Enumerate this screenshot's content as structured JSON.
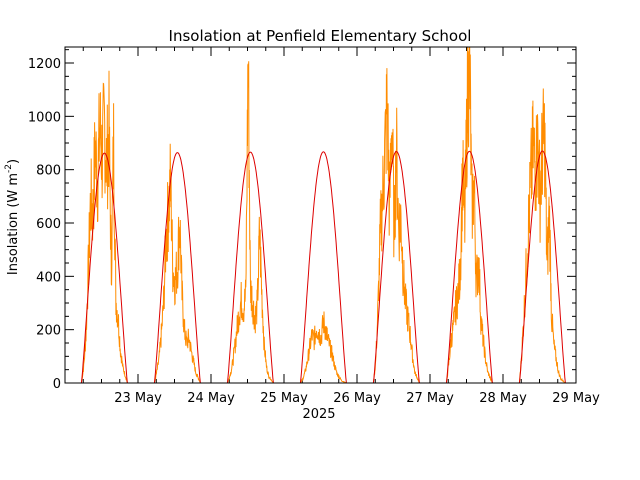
{
  "chart_data": {
    "type": "line",
    "title": "Insolation at Penfield Elementary School",
    "ylabel_main": "Insolation (W m",
    "ylabel_sup": "-2",
    "ylabel_close": ")",
    "xlabel": "2025",
    "x_range_days": [
      22.0,
      29.0
    ],
    "ylim": [
      0,
      1260
    ],
    "y_ticks": [
      0,
      200,
      400,
      600,
      800,
      1000,
      1200
    ],
    "x_ticks": [
      {
        "day": 23,
        "label": "23 May"
      },
      {
        "day": 24,
        "label": "24 May"
      },
      {
        "day": 25,
        "label": "25 May"
      },
      {
        "day": 26,
        "label": "26 May"
      },
      {
        "day": 27,
        "label": "27 May"
      },
      {
        "day": 28,
        "label": "28 May"
      },
      {
        "day": 29,
        "label": "29 May"
      }
    ],
    "grid": false,
    "series": [
      {
        "key": "clear_sky",
        "color": "#dd0000",
        "peaks": [
          862,
          864,
          866,
          867,
          868,
          869,
          870
        ]
      },
      {
        "key": "measured",
        "color": "#ff8c00",
        "days": [
          {
            "profile": [
              [
                0,
                0
              ],
              [
                0.05,
                60
              ],
              [
                0.1,
                180
              ],
              [
                0.15,
                420
              ],
              [
                0.2,
                690
              ],
              [
                0.25,
                640
              ],
              [
                0.3,
                880
              ],
              [
                0.35,
                760
              ],
              [
                0.4,
                960
              ],
              [
                0.45,
                850
              ],
              [
                0.5,
                970
              ],
              [
                0.55,
                820
              ],
              [
                0.6,
                940
              ],
              [
                0.65,
                420
              ],
              [
                0.7,
                900
              ],
              [
                0.75,
                310
              ],
              [
                0.8,
                240
              ],
              [
                0.85,
                120
              ],
              [
                0.9,
                60
              ],
              [
                1,
                0
              ]
            ]
          },
          {
            "profile": [
              [
                0,
                0
              ],
              [
                0.05,
                40
              ],
              [
                0.1,
                90
              ],
              [
                0.15,
                180
              ],
              [
                0.2,
                300
              ],
              [
                0.25,
                530
              ],
              [
                0.3,
                640
              ],
              [
                0.35,
                760
              ],
              [
                0.4,
                430
              ],
              [
                0.45,
                380
              ],
              [
                0.5,
                440
              ],
              [
                0.55,
                620
              ],
              [
                0.6,
                330
              ],
              [
                0.65,
                200
              ],
              [
                0.7,
                150
              ],
              [
                0.75,
                170
              ],
              [
                0.8,
                120
              ],
              [
                0.85,
                80
              ],
              [
                0.9,
                40
              ],
              [
                1,
                0
              ]
            ]
          },
          {
            "profile": [
              [
                0,
                0
              ],
              [
                0.05,
                25
              ],
              [
                0.1,
                60
              ],
              [
                0.15,
                120
              ],
              [
                0.2,
                190
              ],
              [
                0.25,
                260
              ],
              [
                0.3,
                310
              ],
              [
                0.35,
                280
              ],
              [
                0.4,
                330
              ],
              [
                0.45,
                1240
              ],
              [
                0.5,
                360
              ],
              [
                0.55,
                300
              ],
              [
                0.6,
                240
              ],
              [
                0.65,
                290
              ],
              [
                0.7,
                560
              ],
              [
                0.75,
                330
              ],
              [
                0.8,
                140
              ],
              [
                0.85,
                60
              ],
              [
                0.9,
                25
              ],
              [
                1,
                0
              ]
            ]
          },
          {
            "profile": [
              [
                0,
                0
              ],
              [
                0.05,
                15
              ],
              [
                0.1,
                40
              ],
              [
                0.15,
                80
              ],
              [
                0.2,
                130
              ],
              [
                0.25,
                180
              ],
              [
                0.3,
                160
              ],
              [
                0.35,
                210
              ],
              [
                0.4,
                190
              ],
              [
                0.45,
                170
              ],
              [
                0.5,
                230
              ],
              [
                0.55,
                200
              ],
              [
                0.6,
                160
              ],
              [
                0.65,
                130
              ],
              [
                0.7,
                100
              ],
              [
                0.75,
                60
              ],
              [
                0.8,
                35
              ],
              [
                0.85,
                20
              ],
              [
                0.9,
                8
              ],
              [
                1,
                0
              ]
            ]
          },
          {
            "profile": [
              [
                0,
                0
              ],
              [
                0.05,
                80
              ],
              [
                0.1,
                280
              ],
              [
                0.15,
                560
              ],
              [
                0.2,
                700
              ],
              [
                0.25,
                870
              ],
              [
                0.3,
                1050
              ],
              [
                0.35,
                640
              ],
              [
                0.4,
                1000
              ],
              [
                0.45,
                560
              ],
              [
                0.5,
                880
              ],
              [
                0.55,
                580
              ],
              [
                0.6,
                620
              ],
              [
                0.65,
                400
              ],
              [
                0.7,
                300
              ],
              [
                0.75,
                240
              ],
              [
                0.8,
                180
              ],
              [
                0.85,
                100
              ],
              [
                0.9,
                40
              ],
              [
                1,
                0
              ]
            ]
          },
          {
            "profile": [
              [
                0,
                0
              ],
              [
                0.05,
                70
              ],
              [
                0.1,
                160
              ],
              [
                0.15,
                210
              ],
              [
                0.2,
                280
              ],
              [
                0.25,
                330
              ],
              [
                0.3,
                420
              ],
              [
                0.35,
                780
              ],
              [
                0.4,
                600
              ],
              [
                0.45,
                1010
              ],
              [
                0.5,
                1260
              ],
              [
                0.55,
                660
              ],
              [
                0.6,
                740
              ],
              [
                0.65,
                380
              ],
              [
                0.7,
                460
              ],
              [
                0.75,
                240
              ],
              [
                0.8,
                160
              ],
              [
                0.85,
                90
              ],
              [
                0.9,
                40
              ],
              [
                1,
                0
              ]
            ]
          },
          {
            "profile": [
              [
                0,
                0
              ],
              [
                0.05,
                110
              ],
              [
                0.1,
                260
              ],
              [
                0.15,
                430
              ],
              [
                0.2,
                600
              ],
              [
                0.25,
                760
              ],
              [
                0.3,
                880
              ],
              [
                0.35,
                810
              ],
              [
                0.4,
                900
              ],
              [
                0.45,
                700
              ],
              [
                0.5,
                880
              ],
              [
                0.55,
                920
              ],
              [
                0.6,
                430
              ],
              [
                0.65,
                650
              ],
              [
                0.7,
                250
              ],
              [
                0.75,
                140
              ],
              [
                0.8,
                90
              ],
              [
                0.85,
                40
              ],
              [
                0.9,
                15
              ],
              [
                1,
                0
              ]
            ]
          }
        ]
      }
    ]
  }
}
